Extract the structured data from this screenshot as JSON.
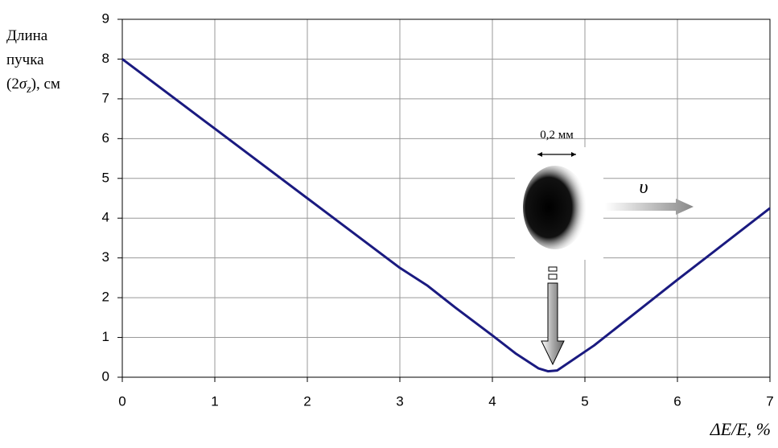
{
  "chart_data": {
    "type": "line",
    "y_label": [
      "Длина",
      "пучка",
      "(2",
      "σ",
      "z",
      "), см"
    ],
    "x_label": "ΔE/E, %",
    "annotations": [
      "0,2 мм",
      "υ"
    ],
    "x": [
      0,
      1,
      2,
      3,
      3.3,
      3.6,
      4,
      4.25,
      4.5,
      4.6,
      4.7,
      5.1,
      6,
      7
    ],
    "series": [
      {
        "color": "#1a1a80",
        "values": [
          8,
          6.25,
          4.5,
          2.75,
          2.3,
          1.75,
          1.05,
          0.6,
          0.22,
          0.15,
          0.17,
          0.8,
          2.45,
          4.25
        ]
      }
    ],
    "xlim": [
      0,
      7
    ],
    "xticks": [
      0,
      1,
      2,
      3,
      4,
      5,
      6,
      7
    ],
    "ylim": [
      0,
      9
    ],
    "yticks": [
      0,
      1,
      2,
      3,
      4,
      5,
      6,
      7,
      8,
      9
    ],
    "grid": true
  }
}
